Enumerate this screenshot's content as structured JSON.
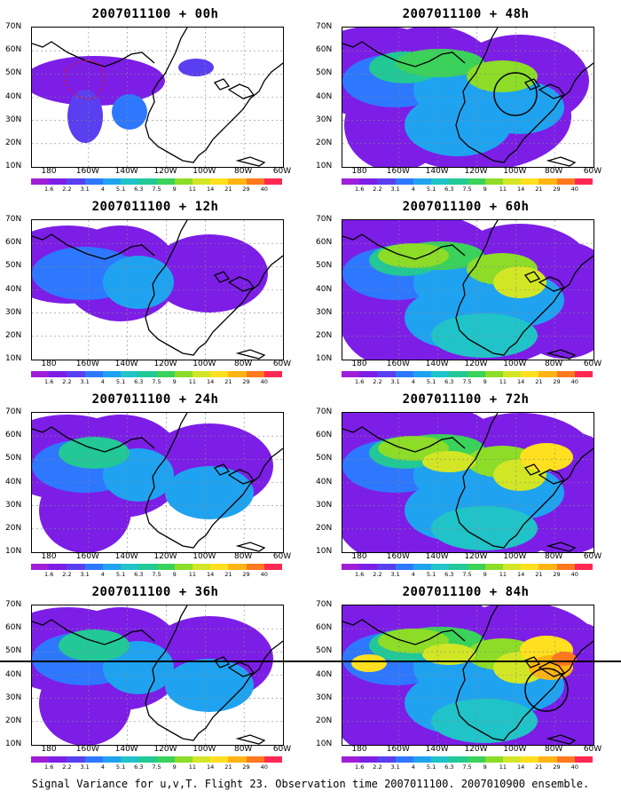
{
  "panels": [
    {
      "title": "2007011100 + 00h",
      "level": 0
    },
    {
      "title": "2007011100 + 48h",
      "level": 3,
      "circle": true
    },
    {
      "title": "2007011100 + 12h",
      "level": 1
    },
    {
      "title": "2007011100 + 60h",
      "level": 4
    },
    {
      "title": "2007011100 + 24h",
      "level": 2
    },
    {
      "title": "2007011100 + 72h",
      "level": 5
    },
    {
      "title": "2007011100 + 36h",
      "level": 2
    },
    {
      "title": "2007011100 + 84h",
      "level": 6,
      "circle": true
    }
  ],
  "lat_labels": [
    "70N",
    "60N",
    "50N",
    "40N",
    "30N",
    "20N",
    "10N"
  ],
  "lon_labels": [
    "180",
    "160W",
    "140W",
    "120W",
    "100W",
    "80W",
    "60W"
  ],
  "colorbar": {
    "labels": [
      "1.6",
      "2.2",
      "3.1",
      "4",
      "5.1",
      "6.3",
      "7.5",
      "9",
      "11",
      "14",
      "21",
      "29",
      "40"
    ],
    "colors": [
      "#a01ed8",
      "#7c1ee6",
      "#5a3ff0",
      "#2e78ff",
      "#1fa3f0",
      "#20c3c8",
      "#22c896",
      "#3ad25a",
      "#8cdc28",
      "#d2e626",
      "#ffe01e",
      "#ffb414",
      "#ff781e",
      "#ff2852"
    ]
  },
  "caption": "Signal Variance for u,v,T. Flight 23. Observation time 2007011100. 2007010900 ensemble."
}
